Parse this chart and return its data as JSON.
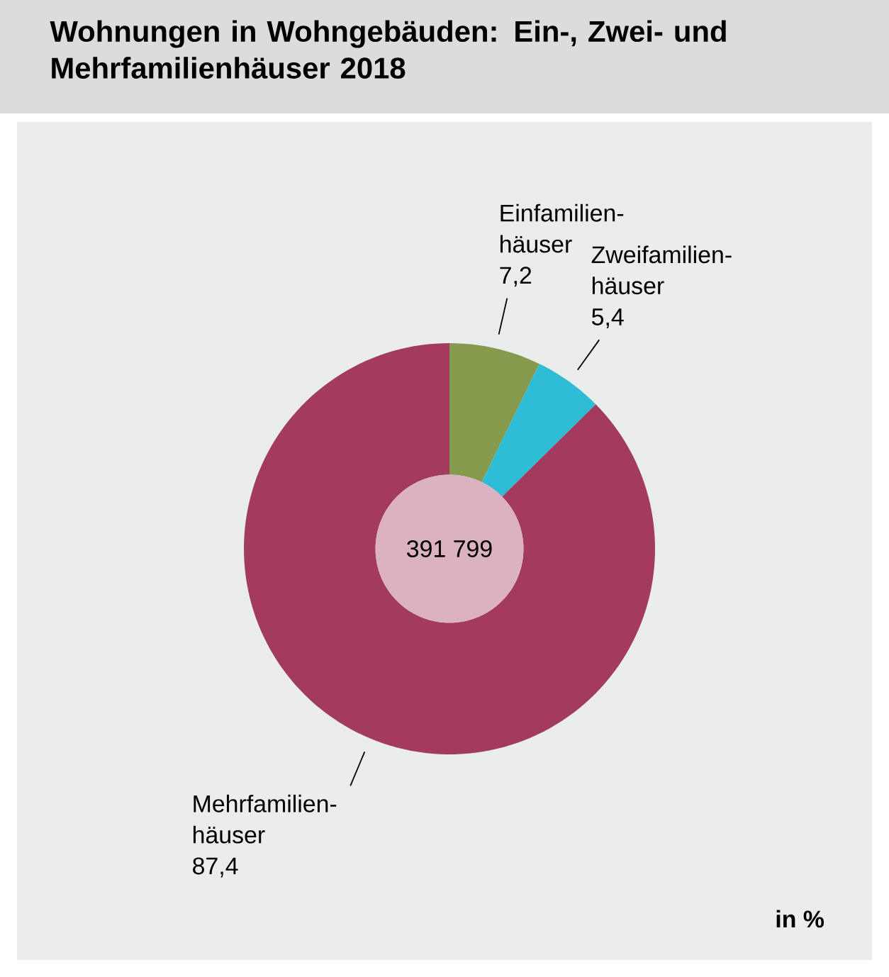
{
  "chart_data": {
    "type": "donut",
    "title": "Wohnungen in Wohngebäuden: Ein-, Zwei- und Mehrfamilienhäuser 2018",
    "categories": [
      "Einfamilien-häuser",
      "Zweifamilien-häuser",
      "Mehrfamilien-häuser"
    ],
    "values": [
      7.2,
      5.4,
      87.4
    ],
    "value_labels": [
      "7,2",
      "5,4",
      "87,4"
    ],
    "colors": [
      "#869a4e",
      "#2fbcd6",
      "#a33b5e"
    ],
    "annotations": [
      "391 799",
      "in %"
    ]
  }
}
